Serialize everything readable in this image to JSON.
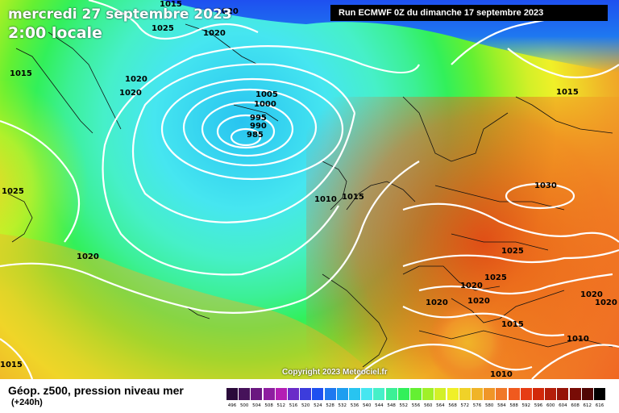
{
  "map": {
    "date_line": "mercredi 27 septembre 2023",
    "time_line": "2:00 locale",
    "run_info": "Run ECMWF 0Z du dimanche 17 septembre 2023",
    "copyright": "Copyright 2023 Meteociel.fr",
    "pressure_labels": [
      "1015",
      "1020",
      "1025",
      "1020",
      "1015",
      "1020",
      "1020",
      "1005",
      "1000",
      "995",
      "990",
      "985",
      "1015",
      "1010",
      "1015",
      "1025",
      "1030",
      "1020",
      "1025",
      "1020",
      "1020",
      "1025",
      "1020",
      "1020",
      "1015",
      "1010",
      "1020",
      "1010",
      "1015"
    ]
  },
  "legend": {
    "title": "Géop. z500, pression niveau mer",
    "step": "(+240h)",
    "scale": [
      {
        "value": "496",
        "color": "#2a0a3a"
      },
      {
        "value": "500",
        "color": "#46125a"
      },
      {
        "value": "504",
        "color": "#6a1880"
      },
      {
        "value": "508",
        "color": "#8e1ea0"
      },
      {
        "value": "512",
        "color": "#b41eb4"
      },
      {
        "value": "516",
        "color": "#6a2cc8"
      },
      {
        "value": "520",
        "color": "#3c3cdc"
      },
      {
        "value": "524",
        "color": "#1e50f0"
      },
      {
        "value": "528",
        "color": "#1e78f0"
      },
      {
        "value": "532",
        "color": "#1e9ef0"
      },
      {
        "value": "536",
        "color": "#28c4f0"
      },
      {
        "value": "540",
        "color": "#46e6f0"
      },
      {
        "value": "544",
        "color": "#46f0c8"
      },
      {
        "value": "548",
        "color": "#3cf096"
      },
      {
        "value": "552",
        "color": "#32f05a"
      },
      {
        "value": "556",
        "color": "#64f032"
      },
      {
        "value": "560",
        "color": "#a0f028"
      },
      {
        "value": "564",
        "color": "#d2f028"
      },
      {
        "value": "568",
        "color": "#f0f028"
      },
      {
        "value": "572",
        "color": "#f0d228"
      },
      {
        "value": "576",
        "color": "#f0b428"
      },
      {
        "value": "580",
        "color": "#f09628"
      },
      {
        "value": "584",
        "color": "#f07828"
      },
      {
        "value": "588",
        "color": "#f05a1e"
      },
      {
        "value": "592",
        "color": "#e63c14"
      },
      {
        "value": "596",
        "color": "#d2280a"
      },
      {
        "value": "600",
        "color": "#b41e0a"
      },
      {
        "value": "604",
        "color": "#961408"
      },
      {
        "value": "608",
        "color": "#780c06"
      },
      {
        "value": "612",
        "color": "#500604"
      },
      {
        "value": "616",
        "color": "#000000"
      }
    ]
  }
}
